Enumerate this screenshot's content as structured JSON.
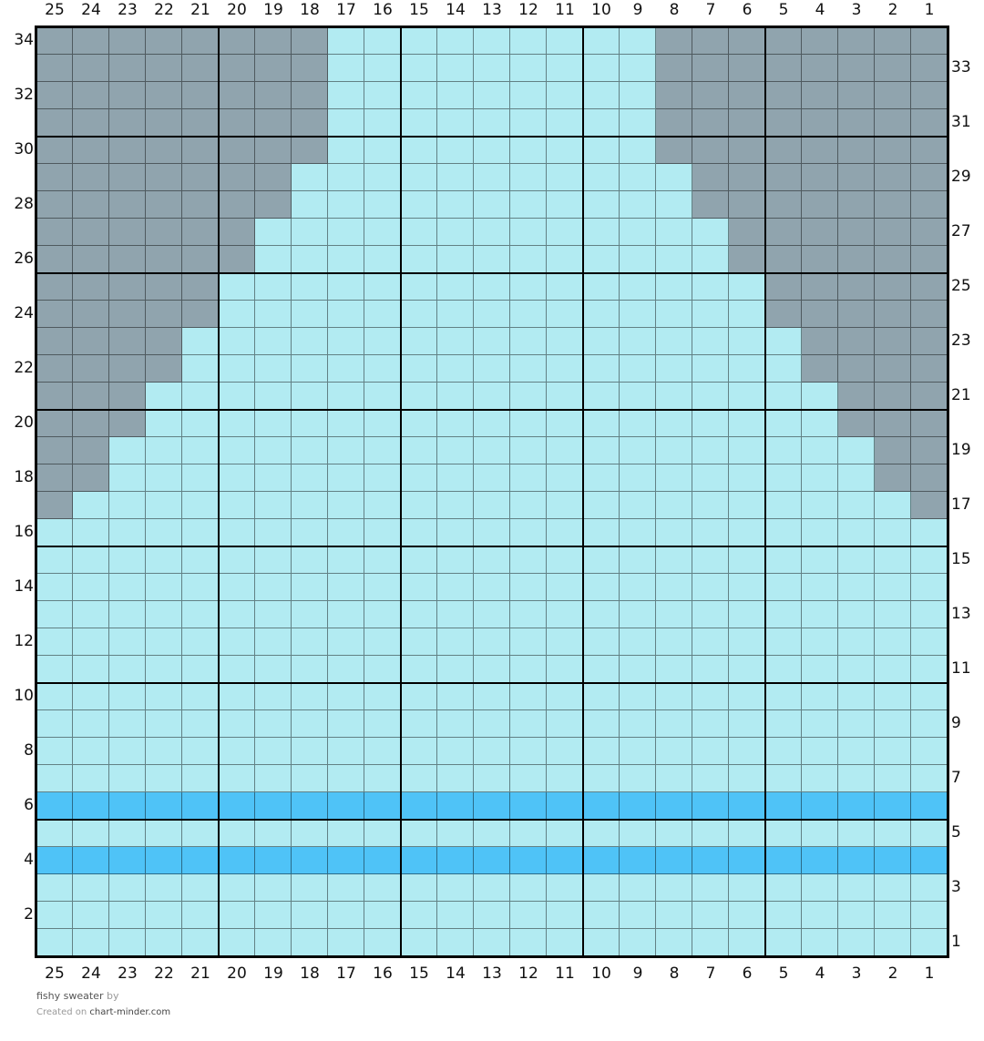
{
  "chart": {
    "title": "fishy sweater",
    "by_label": "by",
    "created_label": "Created on",
    "site": "chart-minder.com",
    "columns": [
      25,
      24,
      23,
      22,
      21,
      20,
      19,
      18,
      17,
      16,
      15,
      14,
      13,
      12,
      11,
      10,
      9,
      8,
      7,
      6,
      5,
      4,
      3,
      2,
      1
    ],
    "rows_top_to_bottom": [
      34,
      33,
      32,
      31,
      30,
      29,
      28,
      27,
      26,
      25,
      24,
      23,
      22,
      21,
      20,
      19,
      18,
      17,
      16,
      15,
      14,
      13,
      12,
      11,
      10,
      9,
      8,
      7,
      6,
      5,
      4,
      3,
      2,
      1
    ],
    "left_row_labels": [
      34,
      32,
      30,
      28,
      26,
      24,
      22,
      20,
      18,
      16,
      14,
      12,
      10,
      8,
      6,
      4,
      2
    ],
    "right_row_labels": [
      33,
      31,
      29,
      27,
      25,
      23,
      21,
      19,
      17,
      15,
      13,
      11,
      9,
      7,
      5,
      3,
      1
    ],
    "colors": {
      "G": "#90a4ae",
      "L": "#b2ebf2",
      "B": "#4fc3f7"
    },
    "color_names": {
      "G": "gray",
      "L": "light-aqua",
      "B": "sky-blue"
    },
    "cells": [
      "GGGGGGGGLLLLLLLLLGGGGGGGG",
      "GGGGGGGGLLLLLLLLLGGGGGGGG",
      "GGGGGGGGLLLLLLLLLGGGGGGGG",
      "GGGGGGGGLLLLLLLLLGGGGGGGG",
      "GGGGGGGGLLLLLLLLLGGGGGGGG",
      "GGGGGGGLLLLLLLLLLLGGGGGGG",
      "GGGGGGGLLLLLLLLLLLGGGGGGG",
      "GGGGGGLLLLLLLLLLLLLGGGGGG",
      "GGGGGGLLLLLLLLLLLLLGGGGGG",
      "GGGGGLLLLLLLLLLLLLLLGGGGG",
      "GGGGGLLLLLLLLLLLLLLLGGGGG",
      "GGGGLLLLLLLLLLLLLLLLLGGGG",
      "GGGGLLLLLLLLLLLLLLLLLGGGG",
      "GGGLLLLLLLLLLLLLLLLLLLGGG",
      "GGGLLLLLLLLLLLLLLLLLLLGGG",
      "GGLLLLLLLLLLLLLLLLLLLLLGG",
      "GGLLLLLLLLLLLLLLLLLLLLLGG",
      "GLLLLLLLLLLLLLLLLLLLLLLLG",
      "LLLLLLLLLLLLLLLLLLLLLLLLL",
      "LLLLLLLLLLLLLLLLLLLLLLLLL",
      "LLLLLLLLLLLLLLLLLLLLLLLLL",
      "LLLLLLLLLLLLLLLLLLLLLLLLL",
      "LLLLLLLLLLLLLLLLLLLLLLLLL",
      "LLLLLLLLLLLLLLLLLLLLLLLLL",
      "LLLLLLLLLLLLLLLLLLLLLLLLL",
      "LLLLLLLLLLLLLLLLLLLLLLLLL",
      "LLLLLLLLLLLLLLLLLLLLLLLLL",
      "LLLLLLLLLLLLLLLLLLLLLLLLL",
      "BBBBBBBBBBBBBBBBBBBBBBBBB",
      "LLLLLLLLLLLLLLLLLLLLLLLLL",
      "BBBBBBBBBBBBBBBBBBBBBBBBB",
      "LLLLLLLLLLLLLLLLLLLLLLLLL",
      "LLLLLLLLLLLLLLLLLLLLLLLLL",
      "LLLLLLLLLLLLLLLLLLLLLLLLL"
    ]
  }
}
